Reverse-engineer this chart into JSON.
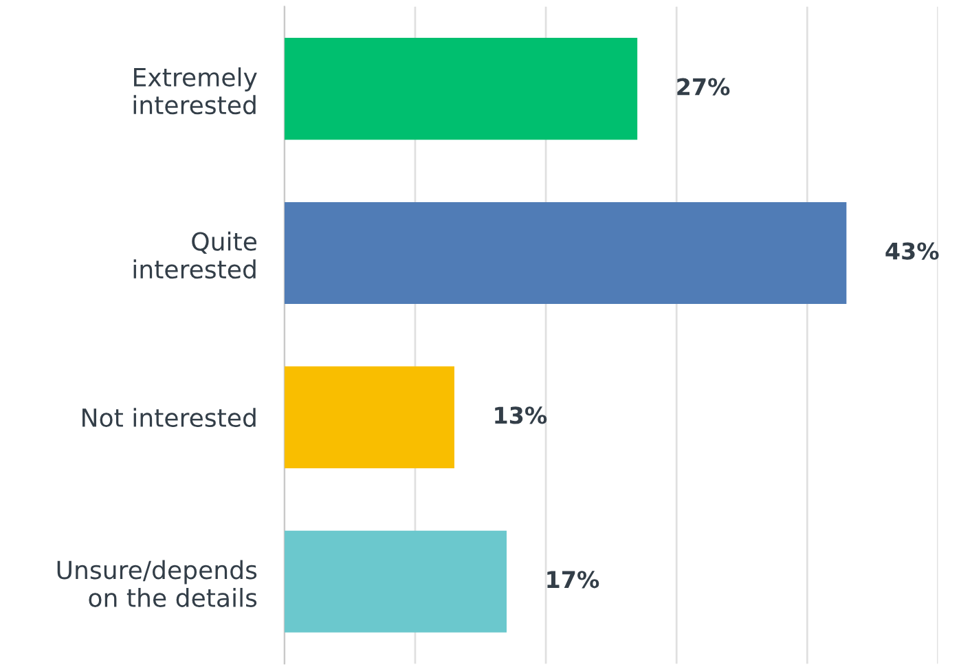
{
  "chart_data": {
    "type": "bar",
    "orientation": "horizontal",
    "categories": [
      "Extremely\ninterested",
      "Quite\ninterested",
      "Not interested",
      "Unsure/depends\non the details"
    ],
    "values": [
      27,
      43,
      13,
      17
    ],
    "colors": [
      "#00bf6f",
      "#507cb6",
      "#f9be00",
      "#6bc8cd"
    ],
    "value_labels": [
      "27%",
      "43%",
      "13%",
      "17%"
    ],
    "xlim": [
      0,
      50
    ],
    "xticks": [
      {
        "value": 0,
        "label": null
      },
      {
        "value": 10,
        "label": null
      },
      {
        "value": 20,
        "label": null
      },
      {
        "value": 30,
        "label": null
      },
      {
        "value": 40,
        "label": null
      },
      {
        "value": 50,
        "label": null
      }
    ],
    "grid": "x",
    "tick_labels": "y",
    "legend": false
  }
}
